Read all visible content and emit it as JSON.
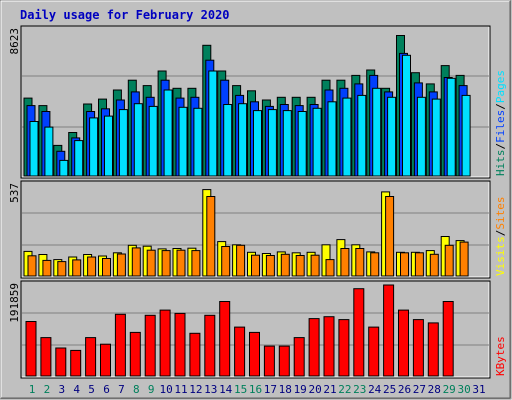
{
  "title": "Daily usage for February 2020",
  "colors": {
    "hits": "#00805c",
    "files": "#0040ff",
    "pages": "#00e0ff",
    "visits": "#ffff00",
    "sites": "#ff8000",
    "kbytes": "#ff0000",
    "weekend_label": "#00805c",
    "weekday_label": "#000080",
    "title": "#0000c0",
    "panel_bg": "#c0c0c0",
    "frame_bg": "#c0c0c0"
  },
  "legend": {
    "top": [
      {
        "text": "Pages",
        "color": "#00e0ff"
      },
      {
        "text": "/",
        "color": "#000000"
      },
      {
        "text": "Files",
        "color": "#0040ff"
      },
      {
        "text": "/",
        "color": "#000000"
      },
      {
        "text": "Hits",
        "color": "#00805c"
      }
    ],
    "middle": [
      {
        "text": "Sites",
        "color": "#ff8000"
      },
      {
        "text": "/",
        "color": "#000000"
      },
      {
        "text": "Visits",
        "color": "#ffff00"
      }
    ],
    "bottom": [
      {
        "text": "KBytes",
        "color": "#ff0000"
      }
    ]
  },
  "chart_data": [
    {
      "type": "bar",
      "panel": "top",
      "categories": [
        "1",
        "2",
        "3",
        "4",
        "5",
        "6",
        "7",
        "8",
        "9",
        "10",
        "11",
        "12",
        "13",
        "14",
        "15",
        "16",
        "17",
        "18",
        "19",
        "20",
        "21",
        "22",
        "23",
        "24",
        "25",
        "26",
        "27",
        "28",
        "29",
        "30",
        "31"
      ],
      "weekend_days": [
        "1",
        "2",
        "8",
        "9",
        "15",
        "16",
        "22",
        "23",
        "29",
        "30"
      ],
      "ymax_label": "8623",
      "ylim": [
        0,
        8623
      ],
      "series": [
        {
          "name": "Hits",
          "values": [
            4600,
            4160,
            1810,
            2570,
            4250,
            4540,
            5080,
            5660,
            5340,
            6200,
            5180,
            5180,
            7720,
            6200,
            5340,
            5030,
            4490,
            4650,
            4650,
            4650,
            5660,
            5660,
            5940,
            6260,
            5180,
            8300,
            6100,
            5440,
            6520,
            5940,
            0
          ]
        },
        {
          "name": "Files",
          "values": [
            4160,
            3810,
            1460,
            2250,
            3810,
            3970,
            4490,
            4970,
            4650,
            5660,
            4600,
            4650,
            6840,
            5660,
            4760,
            4380,
            4110,
            4220,
            4160,
            4220,
            5080,
            5180,
            5440,
            5940,
            4970,
            7240,
            5500,
            4970,
            5820,
            5340,
            0
          ]
        },
        {
          "name": "Pages",
          "values": [
            3220,
            2890,
            920,
            2090,
            3430,
            3540,
            3920,
            4270,
            4110,
            5080,
            4060,
            4000,
            6200,
            4220,
            4270,
            3860,
            3920,
            3860,
            3810,
            4000,
            4380,
            4600,
            4760,
            5180,
            4650,
            7130,
            4650,
            4540,
            5770,
            4760,
            0
          ]
        }
      ]
    },
    {
      "type": "bar",
      "panel": "middle",
      "categories": [
        "1",
        "2",
        "3",
        "4",
        "5",
        "6",
        "7",
        "8",
        "9",
        "10",
        "11",
        "12",
        "13",
        "14",
        "15",
        "16",
        "17",
        "18",
        "19",
        "20",
        "21",
        "22",
        "23",
        "24",
        "25",
        "26",
        "27",
        "28",
        "29",
        "30",
        "31"
      ],
      "ymax_label": "537",
      "ylim": [
        0,
        537
      ],
      "series": [
        {
          "name": "Visits",
          "values": [
            145,
            127,
            97,
            112,
            127,
            118,
            137,
            181,
            176,
            160,
            162,
            164,
            510,
            203,
            184,
            140,
            133,
            142,
            137,
            140,
            184,
            215,
            184,
            142,
            496,
            140,
            140,
            150,
            233,
            209,
            0
          ]
        },
        {
          "name": "Sites",
          "values": [
            119,
            92,
            85,
            95,
            112,
            103,
            130,
            166,
            152,
            150,
            152,
            150,
            469,
            174,
            181,
            123,
            121,
            128,
            121,
            123,
            97,
            162,
            162,
            137,
            469,
            137,
            137,
            128,
            181,
            200,
            0
          ]
        }
      ]
    },
    {
      "type": "bar",
      "panel": "bottom",
      "categories": [
        "1",
        "2",
        "3",
        "4",
        "5",
        "6",
        "7",
        "8",
        "9",
        "10",
        "11",
        "12",
        "13",
        "14",
        "15",
        "16",
        "17",
        "18",
        "19",
        "20",
        "21",
        "22",
        "23",
        "24",
        "25",
        "26",
        "27",
        "28",
        "29",
        "30",
        "31"
      ],
      "ymax_label": "191859",
      "ylim": [
        0,
        191859
      ],
      "series": [
        {
          "name": "KBytes",
          "values": [
            115000,
            81000,
            59000,
            54000,
            81000,
            67000,
            130000,
            92000,
            128000,
            139000,
            132000,
            90000,
            128000,
            157000,
            103000,
            92000,
            63000,
            63000,
            81000,
            121000,
            125000,
            119000,
            184000,
            103000,
            191859,
            139000,
            119000,
            112000,
            157000,
            0,
            0
          ]
        }
      ]
    }
  ]
}
